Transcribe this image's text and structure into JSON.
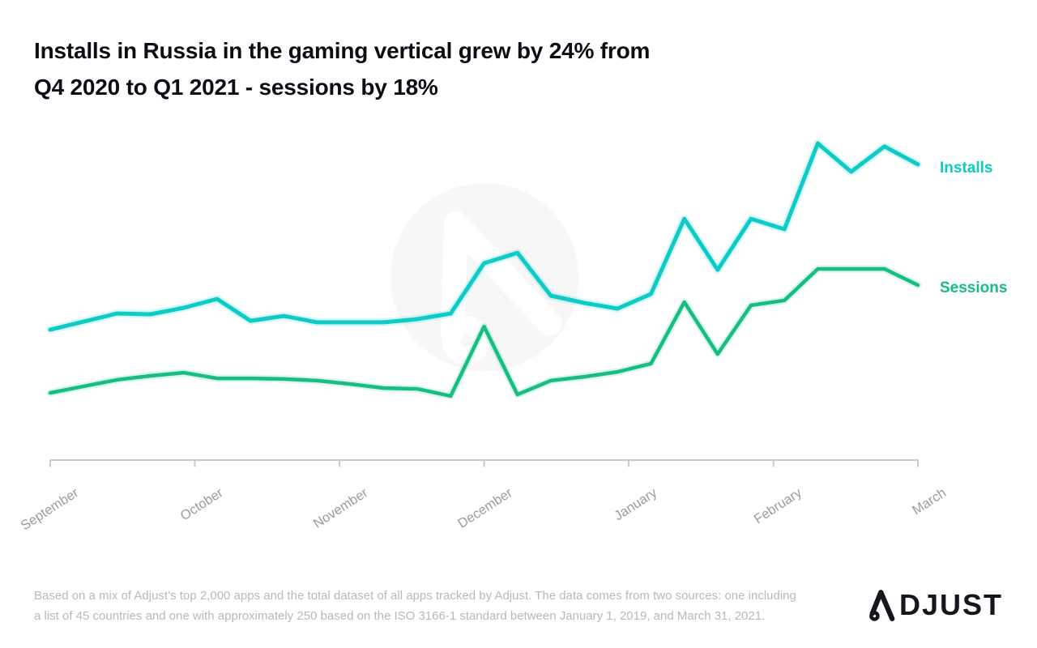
{
  "title": {
    "line1": "Installs in Russia in the gaming vertical grew by 24% from",
    "line2": "Q4 2020 to Q1 2021 - sessions by 18%"
  },
  "chart_data": {
    "type": "line",
    "title": "Installs in Russia in the gaming vertical grew by 24% from Q4 2020 to Q1 2021 - sessions by 18%",
    "x_axis": {
      "unit": "weeks (September through March, weekly points)",
      "months": [
        {
          "label": "September",
          "week": 0
        },
        {
          "label": "October",
          "week": 4.33
        },
        {
          "label": "November",
          "week": 8.67
        },
        {
          "label": "December",
          "week": 13
        },
        {
          "label": "January",
          "week": 17.33
        },
        {
          "label": "February",
          "week": 21.67
        },
        {
          "label": "March",
          "week": 26
        }
      ]
    },
    "y_axis": {
      "visible": false,
      "scale": "relative volume index, 0-100 of plot height (no numeric axis shown)"
    },
    "grid": false,
    "legend_position": "right of line ends",
    "axis_color": "#cbcbcb",
    "label_color": "#9b9b9b",
    "series": [
      {
        "name": "Installs",
        "color": "#0ecbc6",
        "values": [
          32.3,
          35.1,
          38,
          37.7,
          40,
          43.1,
          35.4,
          37.1,
          34.9,
          34.9,
          34.9,
          36,
          38,
          55.7,
          59.4,
          44.3,
          41.7,
          39.7,
          44.9,
          71.4,
          53.4,
          71.4,
          67.7,
          98,
          88,
          96.9,
          90.6
        ]
      },
      {
        "name": "Sessions",
        "color": "#17bc88",
        "values": [
          10,
          12.3,
          14.6,
          16,
          17.1,
          15.1,
          15.1,
          14.9,
          14.3,
          13.1,
          11.7,
          11.4,
          8.9,
          33.4,
          9.4,
          14.3,
          15.7,
          17.4,
          20.3,
          42,
          23.7,
          40.9,
          42.6,
          53.7,
          53.7,
          53.7,
          48
        ]
      }
    ]
  },
  "footer": {
    "disclaimer_line1": "Based on a mix of Adjust’s top 2,000 apps and the total dataset of all apps tracked by Adjust. The data comes from two sources: one including",
    "disclaimer_line2": "a list of 45 countries and one with approximately 250 based on the ISO 3166-1 standard between January 1, 2019, and March 31, 2021.",
    "brand": "ADJUST"
  }
}
